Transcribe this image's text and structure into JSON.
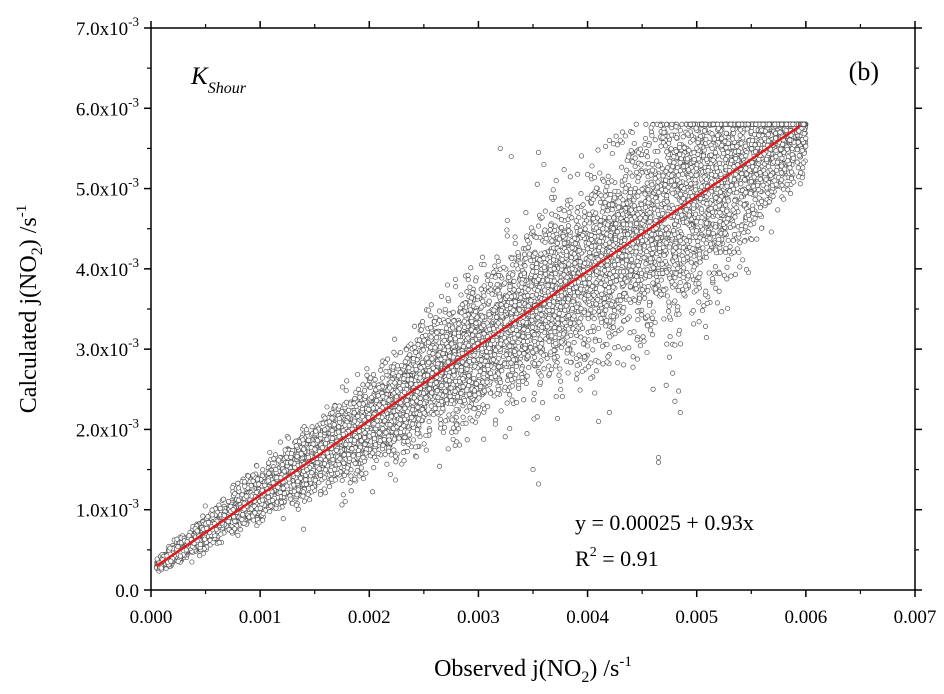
{
  "chart_data": {
    "type": "scatter",
    "panel_label": "(b)",
    "method_label": {
      "main": "K",
      "subscript": "Shour"
    },
    "xlabel": {
      "main": "Observed j(NO",
      "sub": "2",
      "end": ") /s",
      "sup": "-1"
    },
    "ylabel": {
      "main": "Calculated j(NO",
      "sub": "2",
      "end": ") /s",
      "sup": "-1"
    },
    "xlim": [
      0.0,
      0.007
    ],
    "ylim": [
      0.0,
      0.007
    ],
    "grid": false,
    "x_ticks": [
      0.0,
      0.001,
      0.002,
      0.003,
      0.004,
      0.005,
      0.006,
      0.007
    ],
    "x_tick_labels": [
      "0.000",
      "0.001",
      "0.002",
      "0.003",
      "0.004",
      "0.005",
      "0.006",
      "0.007"
    ],
    "y_ticks": [
      0.0,
      0.001,
      0.002,
      0.003,
      0.004,
      0.005,
      0.006,
      0.007
    ],
    "y_tick_labels": [
      {
        "base": "0.0",
        "exp": ""
      },
      {
        "base": "1.0x10",
        "exp": "-3"
      },
      {
        "base": "2.0x10",
        "exp": "-3"
      },
      {
        "base": "3.0x10",
        "exp": "-3"
      },
      {
        "base": "4.0x10",
        "exp": "-3"
      },
      {
        "base": "5.0x10",
        "exp": "-3"
      },
      {
        "base": "6.0x10",
        "exp": "-3"
      },
      {
        "base": "7.0x10",
        "exp": "-3"
      }
    ],
    "scatter": {
      "marker": "open-circle",
      "color": "#555555",
      "approx_count": 9000,
      "x_range": [
        5e-05,
        0.006
      ],
      "relation": "approximately y = 0.00025 + 0.93x with scatter"
    },
    "fit_line": {
      "intercept": 0.00025,
      "slope": 0.93,
      "x_range": [
        5e-05,
        0.00595
      ],
      "color": "#e31a1c"
    },
    "equation_text": "y = 0.00025 +  0.93x",
    "r2_text": {
      "prefix": "R",
      "sup": "2",
      "suffix": " = 0.91"
    }
  }
}
